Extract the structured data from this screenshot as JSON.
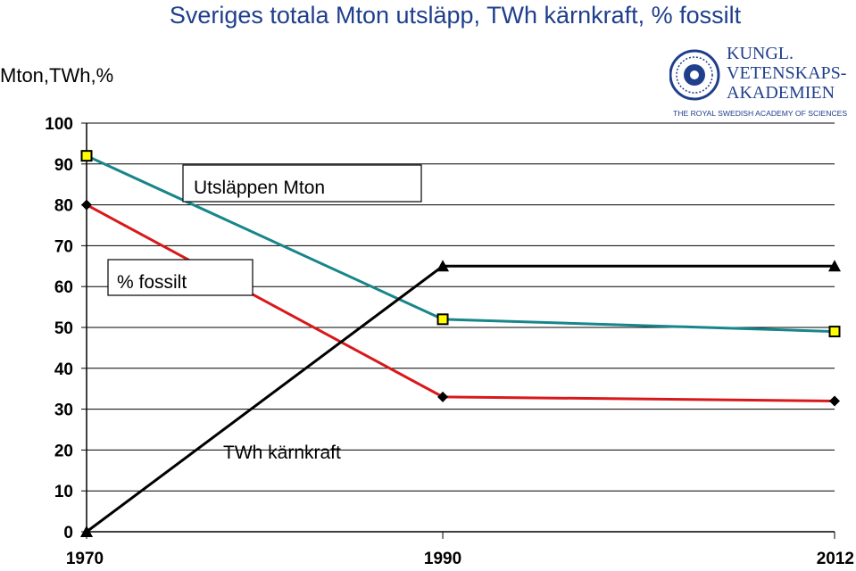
{
  "chart_data": {
    "type": "line",
    "title": "Sveriges totala Mton utsläpp, TWh kärnkraft, % fossilt",
    "ylabel": "Mton,TWh,%",
    "xlabel": "",
    "x": [
      1970,
      1990,
      2012
    ],
    "x_tick_labels": [
      "1970",
      "1990",
      "2012"
    ],
    "ylim": [
      0,
      100
    ],
    "y_ticks": [
      0,
      10,
      20,
      30,
      40,
      50,
      60,
      70,
      80,
      90,
      100
    ],
    "grid": "horizontal",
    "series": [
      {
        "name": "Utsläppen Mton",
        "values": [
          92,
          52,
          49
        ],
        "color": "#17868a",
        "marker": "square"
      },
      {
        "name": "% fossilt",
        "values": [
          80,
          33,
          32
        ],
        "color": "#d9181b",
        "marker": "diamond"
      },
      {
        "name": "TWh kärnkraft",
        "values": [
          0,
          65,
          65
        ],
        "color": "#000000",
        "marker": "triangle"
      }
    ]
  },
  "logo": {
    "line1": "KUNGL.",
    "line2": "VETENSKAPS-",
    "line3": "AKADEMIEN",
    "tagline": "THE ROYAL SWEDISH ACADEMY OF SCIENCES",
    "color": "#1f3f8c"
  }
}
